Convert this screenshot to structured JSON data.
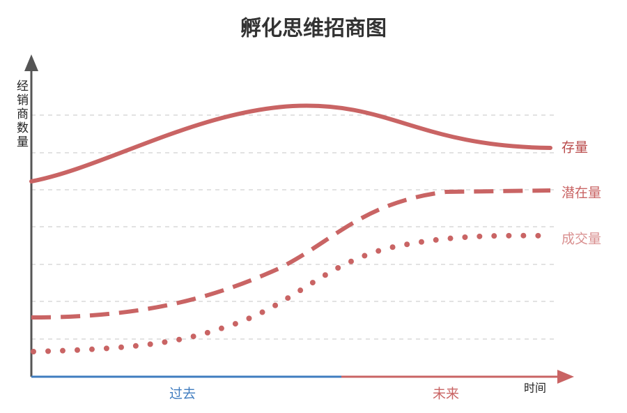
{
  "title": "孵化思维招商图",
  "y_axis_label": "经销商数量",
  "x_axis_label": "时间",
  "x_segments": [
    "过去",
    "未来"
  ],
  "series_labels": [
    "存量",
    "潜在量",
    "成交量"
  ]
}
